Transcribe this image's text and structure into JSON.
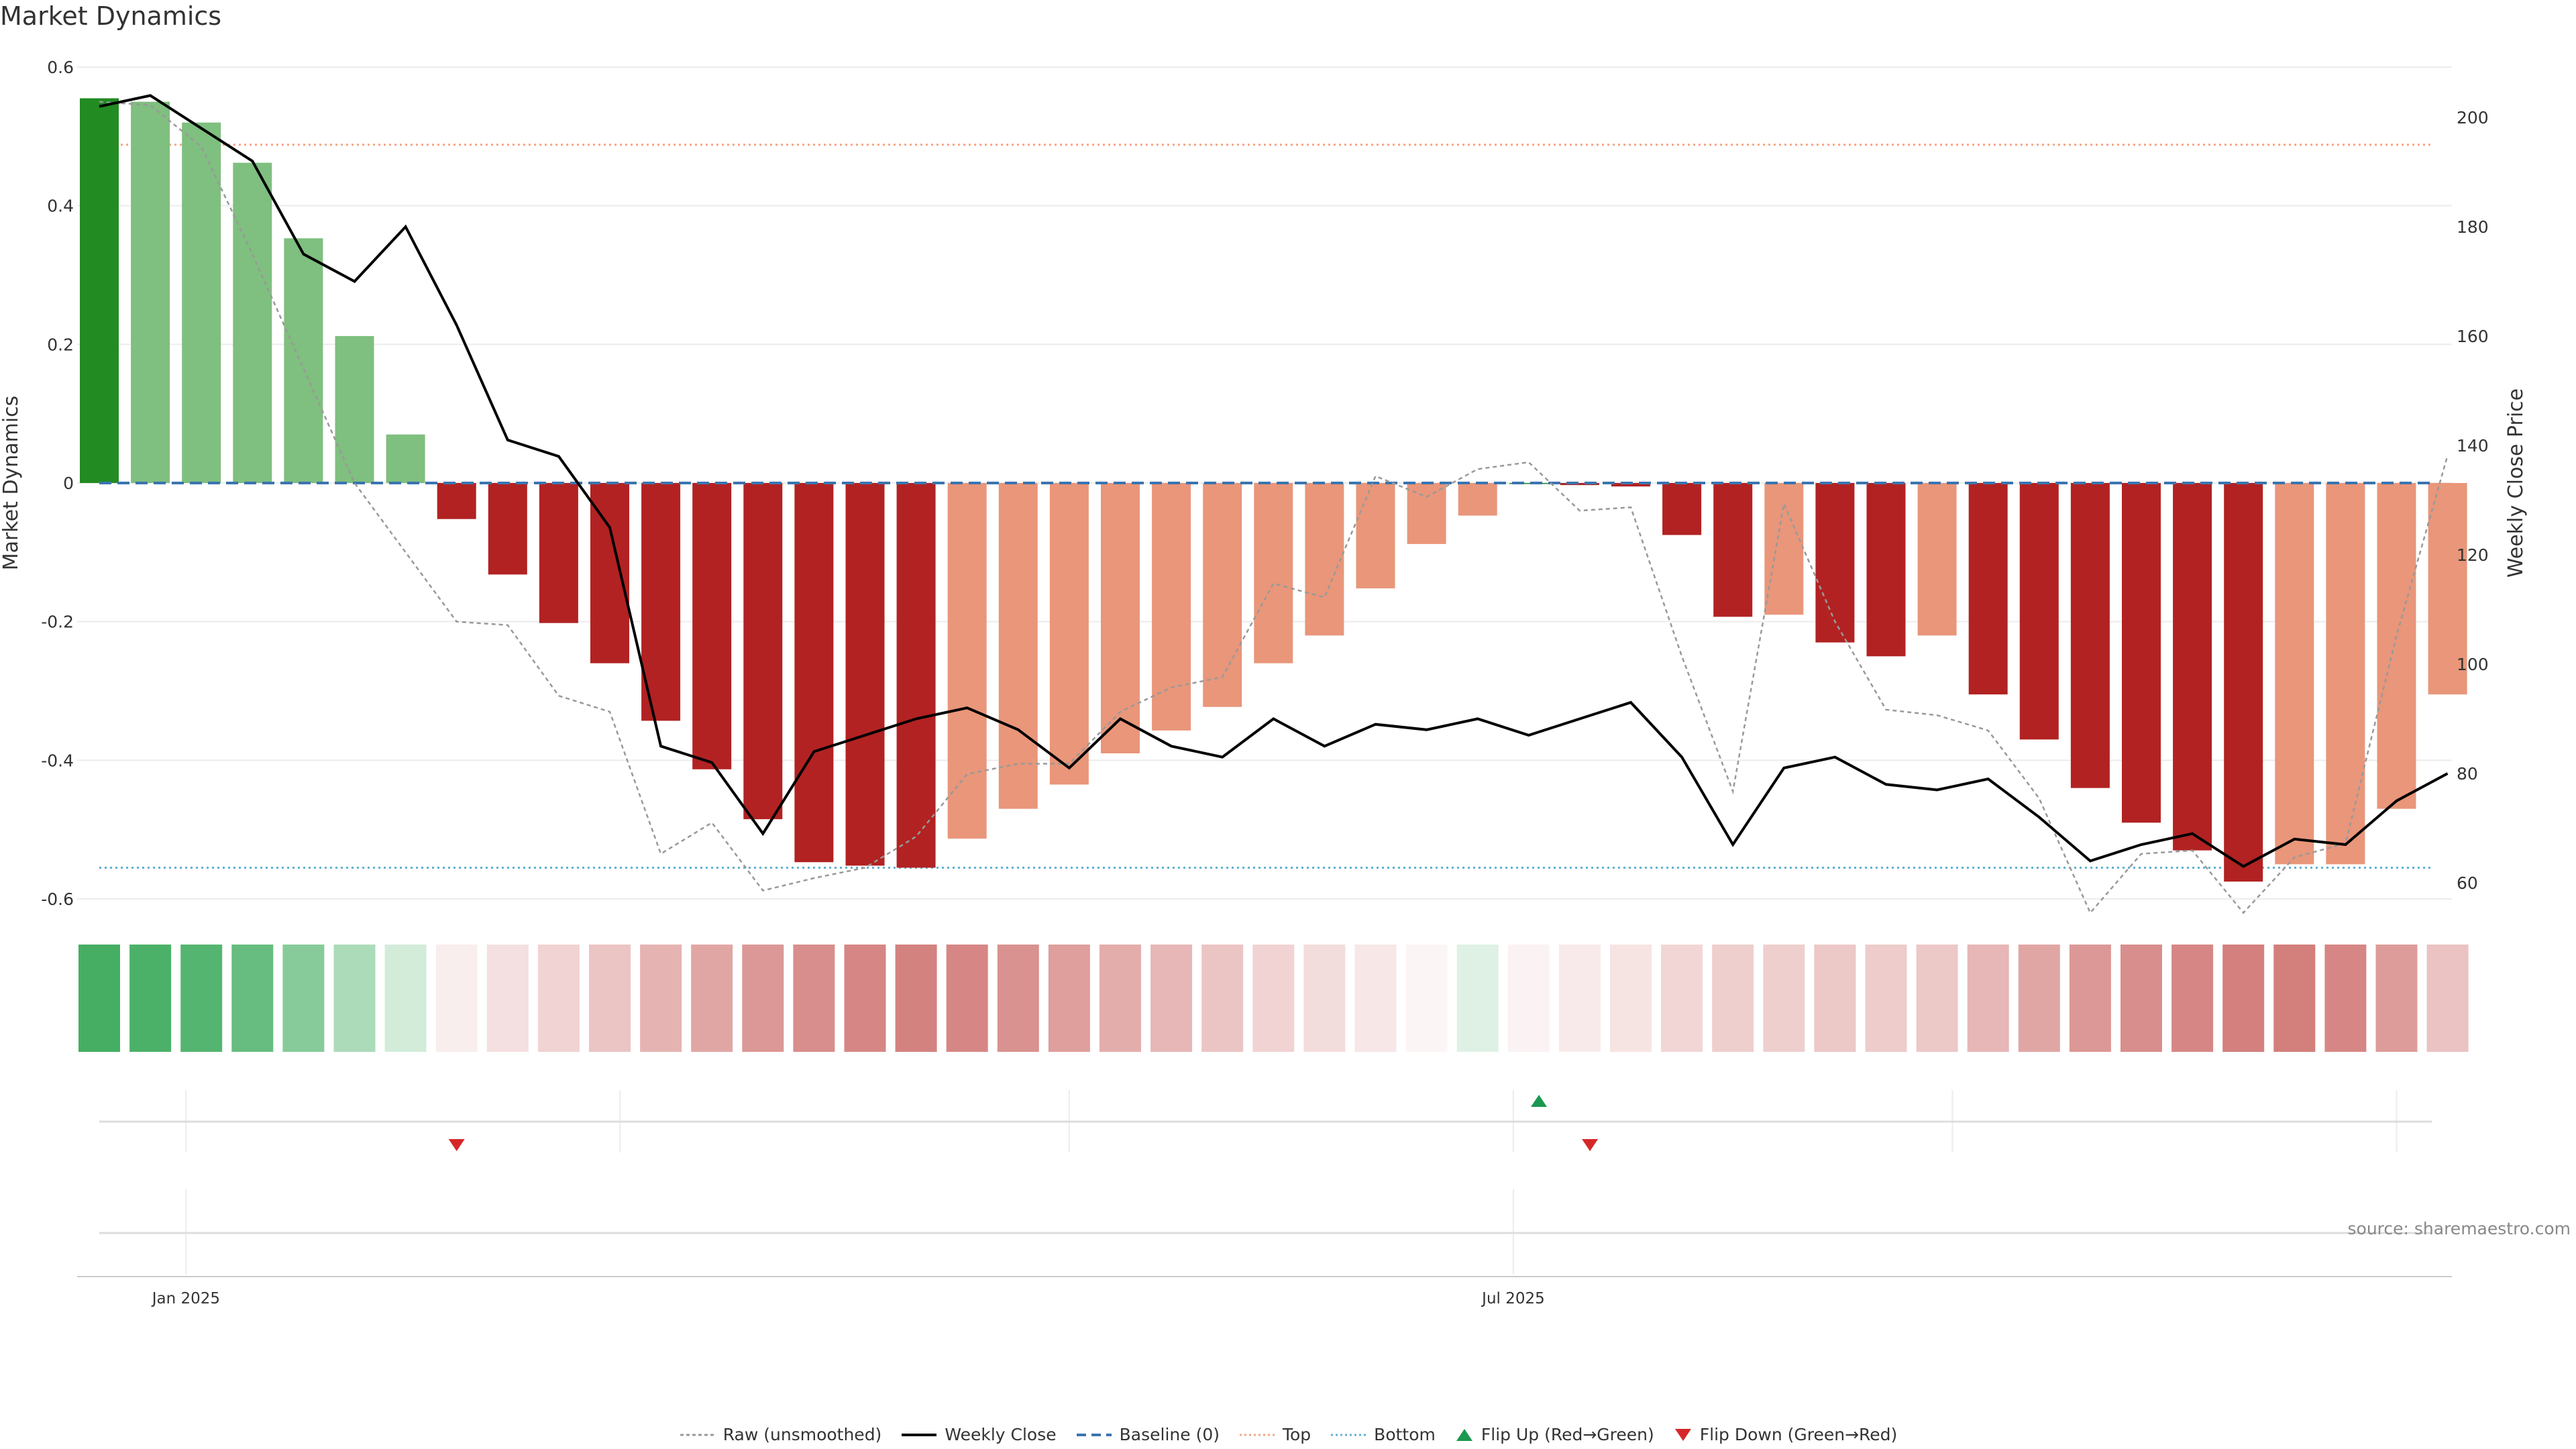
{
  "title": "Market Dynamics",
  "source": "source: sharemaestro.com",
  "colors": {
    "strong_green": "#228b22",
    "light_green": "#7fbf7f",
    "strong_red": "#b22222",
    "light_red": "#e9967a",
    "close": "#000000",
    "raw": "#999999",
    "baseline": "#3b75af",
    "top": "#f4a582",
    "bottom": "#5fb0d0",
    "flip_up": "#1a9850",
    "flip_down": "#d62728"
  },
  "chart_data": {
    "type": "bar",
    "title": "Market Dynamics",
    "ylabel": "Market Dynamics",
    "y2label": "Weekly Close Price",
    "ylim": [
      -0.6,
      0.6
    ],
    "y2lim": [
      55,
      205
    ],
    "yticks": [
      0.6,
      0.4,
      0.2,
      0,
      -0.2,
      -0.4,
      -0.6
    ],
    "y2ticks": [
      200,
      180,
      160,
      140,
      120,
      100,
      80,
      60
    ],
    "xtick_labels": [
      {
        "label": "Jan 2025",
        "index": 1.7
      },
      {
        "label": "Jul 2025",
        "index": 27.7
      }
    ],
    "weeks": 47,
    "dynamics": [
      0.555,
      0.55,
      0.52,
      0.462,
      0.353,
      0.212,
      0.07,
      -0.052,
      -0.132,
      -0.202,
      -0.26,
      -0.343,
      -0.413,
      -0.485,
      -0.547,
      -0.552,
      -0.555,
      -0.513,
      -0.47,
      -0.435,
      -0.39,
      -0.357,
      -0.323,
      -0.26,
      -0.22,
      -0.152,
      -0.088,
      -0.047,
      0.0,
      -0.003,
      -0.005,
      -0.075,
      -0.193,
      -0.19,
      -0.23,
      -0.25,
      -0.22,
      -0.305,
      -0.37,
      -0.44,
      -0.49,
      -0.53,
      -0.575,
      -0.55,
      -0.55,
      -0.47,
      -0.305
    ],
    "bar_strength": [
      "strong",
      "light",
      "light",
      "light",
      "light",
      "light",
      "light",
      "strong",
      "strong",
      "strong",
      "strong",
      "strong",
      "strong",
      "strong",
      "strong",
      "strong",
      "strong",
      "light",
      "light",
      "light",
      "light",
      "light",
      "light",
      "light",
      "light",
      "light",
      "light",
      "light",
      "strong",
      "strong",
      "strong",
      "strong",
      "strong",
      "light",
      "strong",
      "strong",
      "light",
      "strong",
      "strong",
      "strong",
      "strong",
      "strong",
      "strong",
      "light",
      "light",
      "light",
      "light"
    ],
    "raw": [
      0.55,
      0.545,
      0.485,
      0.33,
      0.165,
      0.0,
      -0.1,
      -0.2,
      -0.205,
      -0.307,
      -0.33,
      -0.535,
      -0.49,
      -0.588,
      -0.57,
      -0.555,
      -0.51,
      -0.42,
      -0.405,
      -0.405,
      -0.33,
      -0.295,
      -0.28,
      -0.145,
      -0.165,
      0.01,
      -0.02,
      0.02,
      0.03,
      -0.04,
      -0.035,
      -0.25,
      -0.445,
      -0.03,
      -0.2,
      -0.327,
      -0.335,
      -0.357,
      -0.455,
      -0.62,
      -0.535,
      -0.53,
      -0.62,
      -0.54,
      -0.52,
      -0.22,
      0.04
    ],
    "weekly_close": [
      202,
      204,
      198,
      192,
      175,
      170,
      180,
      162,
      141,
      138,
      125,
      85,
      82,
      69,
      84,
      87,
      90,
      92,
      88,
      81,
      90,
      85,
      83,
      90,
      85,
      89,
      88,
      90,
      87,
      90,
      93,
      83,
      67,
      81,
      83,
      78,
      77,
      79,
      72,
      64,
      67,
      69,
      63,
      68,
      67,
      75,
      80
    ],
    "heat_strip": [
      0.85,
      0.82,
      0.78,
      0.7,
      0.55,
      0.38,
      0.2,
      -0.1,
      -0.18,
      -0.26,
      -0.34,
      -0.44,
      -0.52,
      -0.6,
      -0.66,
      -0.7,
      -0.73,
      -0.7,
      -0.64,
      -0.56,
      -0.48,
      -0.42,
      -0.34,
      -0.26,
      -0.2,
      -0.14,
      -0.06,
      0.15,
      -0.07,
      -0.12,
      -0.16,
      -0.24,
      -0.28,
      -0.28,
      -0.32,
      -0.3,
      -0.32,
      -0.42,
      -0.52,
      -0.6,
      -0.66,
      -0.7,
      -0.74,
      -0.75,
      -0.7,
      -0.58,
      -0.35
    ],
    "reference_lines": {
      "baseline": 0,
      "top": 0.488,
      "bottom": -0.555
    },
    "flips": [
      {
        "index": 7,
        "type": "down"
      },
      {
        "index": 28.2,
        "type": "up"
      },
      {
        "index": 29.2,
        "type": "down"
      }
    ],
    "legend": [
      "Raw (unsmoothed)",
      "Weekly Close",
      "Baseline (0)",
      "Top",
      "Bottom",
      "Flip Up (Red→Green)",
      "Flip Down (Green→Red)"
    ]
  }
}
